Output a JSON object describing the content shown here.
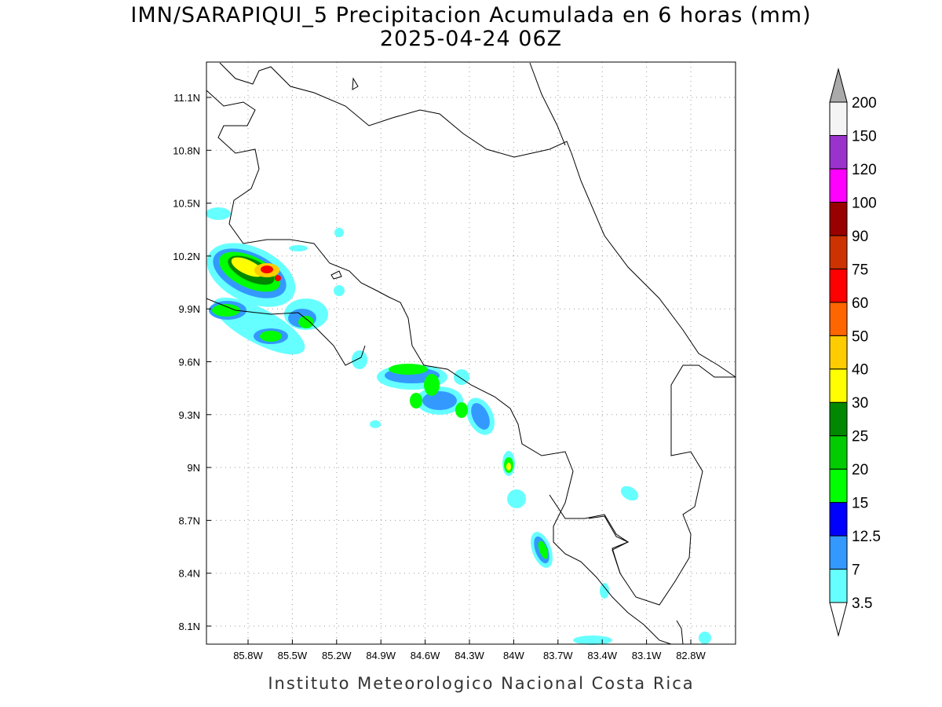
{
  "header": {
    "title": "IMN/SARAPIQUI_5 Precipitacion Acumulada en 6 horas (mm)",
    "subtitle": "2025-04-24 06Z"
  },
  "map": {
    "lat_ticks": [
      "11.1N",
      "10.8N",
      "10.5N",
      "10.2N",
      "9.9N",
      "9.6N",
      "9.3N",
      "9N",
      "8.7N",
      "8.4N",
      "8.1N"
    ],
    "lon_ticks": [
      "85.8W",
      "85.5W",
      "85.2W",
      "84.9W",
      "84.6W",
      "84.3W",
      "84W",
      "83.7W",
      "83.4W",
      "83.1W",
      "82.8W"
    ]
  },
  "colorbar": {
    "levels": [
      "3.5",
      "7",
      "12.5",
      "15",
      "20",
      "25",
      "30",
      "40",
      "50",
      "60",
      "75",
      "90",
      "100",
      "120",
      "150",
      "200"
    ],
    "colors": [
      "#66ffff",
      "#3399ff",
      "#0000ff",
      "#00ff00",
      "#00cc00",
      "#008800",
      "#ffff00",
      "#ffcc00",
      "#ff6600",
      "#ff0000",
      "#cc3300",
      "#990000",
      "#ff00ff",
      "#9933cc",
      "#f4f4f4"
    ],
    "below_color": "#ffffff",
    "above_color": "#aaaaaa"
  },
  "footer": "Instituto Meteorologico Nacional Costa Rica"
}
